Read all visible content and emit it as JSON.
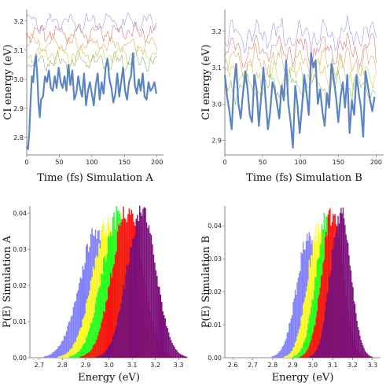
{
  "chart_data": [
    {
      "type": "line",
      "xlabel": "Time (fs) Simulation A",
      "ylabel": "CI energy (eV)",
      "xlim": [
        0,
        210
      ],
      "ylim": [
        2.74,
        3.24
      ],
      "xticks": [
        0,
        50,
        100,
        150,
        200
      ],
      "yticks": [
        2.8,
        2.9,
        3.0,
        3.1,
        3.2
      ],
      "yticklabels": [
        "2.8",
        "2.9",
        "3.0",
        "3.1",
        "3.2"
      ],
      "grid": false,
      "series": [
        {
          "color": "#9999ee",
          "width": 0.6,
          "base": 3.195,
          "amp": 0.032,
          "seed": 1.3
        },
        {
          "color": "#dd7777",
          "width": 0.6,
          "base": 3.16,
          "amp": 0.03,
          "seed": 2.1
        },
        {
          "color": "#ddaa66",
          "width": 0.6,
          "base": 3.12,
          "amp": 0.03,
          "seed": 3.7
        },
        {
          "color": "#cccc55",
          "width": 0.6,
          "base": 3.085,
          "amp": 0.03,
          "seed": 4.4
        },
        {
          "color": "#88bb66",
          "width": 0.6,
          "base": 3.06,
          "amp": 0.03,
          "seed": 5.9
        },
        {
          "color": "#5b84c4",
          "width": 2.2,
          "x": [
            0,
            2,
            4,
            6,
            8,
            10,
            12,
            14,
            16,
            18,
            20,
            22,
            25,
            28,
            31,
            34,
            37,
            40,
            43,
            46,
            49,
            52,
            55,
            58,
            61,
            64,
            67,
            70,
            73,
            76,
            79,
            82,
            85,
            88,
            91,
            94,
            97,
            100,
            103,
            106,
            109,
            112,
            115,
            118,
            121,
            124,
            127,
            130,
            133,
            136,
            139,
            142,
            145,
            148,
            151,
            154,
            157,
            160,
            163,
            166,
            169,
            172,
            175,
            178,
            181,
            184,
            187,
            190,
            193,
            196,
            199
          ],
          "y": [
            2.77,
            2.76,
            2.82,
            2.93,
            3.01,
            2.99,
            3.05,
            3.08,
            3.02,
            2.92,
            2.87,
            2.93,
            2.94,
            3.01,
            2.99,
            3.03,
            2.97,
            2.96,
            3.01,
            2.97,
            3.04,
            2.99,
            2.97,
            3.01,
            2.96,
            3.05,
            2.98,
            3.03,
            2.93,
            2.95,
            3.01,
            2.97,
            2.94,
            3.02,
            2.91,
            2.96,
            2.99,
            2.95,
            2.91,
            2.98,
            3.02,
            2.93,
            2.99,
            2.95,
            3.04,
            3.07,
            3.0,
            2.97,
            2.92,
            2.95,
            3.02,
            2.94,
            2.99,
            3.04,
            2.96,
            2.93,
            2.99,
            3.01,
            3.09,
            2.98,
            2.95,
            3.0,
            2.96,
            3.02,
            2.94,
            2.93,
            2.99,
            2.96,
            2.97,
            2.99,
            2.95
          ]
        }
      ]
    },
    {
      "type": "line",
      "xlabel": "Time (fs) Simulation B",
      "ylabel": "CI energy (eV)",
      "xlim": [
        0,
        210
      ],
      "ylim": [
        2.86,
        3.26
      ],
      "xticks": [
        0,
        50,
        100,
        150,
        200
      ],
      "yticks": [
        2.9,
        3.0,
        3.1,
        3.2
      ],
      "yticklabels": [
        "2.9",
        "3.0",
        "3.1",
        "3.2"
      ],
      "grid": false,
      "series": [
        {
          "color": "#9999ee",
          "width": 0.6,
          "base": 3.19,
          "amp": 0.04,
          "seed": 6.2
        },
        {
          "color": "#dd7777",
          "width": 0.6,
          "base": 3.15,
          "amp": 0.04,
          "seed": 7.5
        },
        {
          "color": "#ddaa66",
          "width": 0.6,
          "base": 3.115,
          "amp": 0.04,
          "seed": 8.8
        },
        {
          "color": "#cccc55",
          "width": 0.6,
          "base": 3.08,
          "amp": 0.04,
          "seed": 9.1
        },
        {
          "color": "#88bb66",
          "width": 0.6,
          "base": 3.05,
          "amp": 0.04,
          "seed": 10.6
        },
        {
          "color": "#5b84c4",
          "width": 2.2,
          "x": [
            0,
            3,
            6,
            9,
            12,
            15,
            18,
            21,
            24,
            27,
            30,
            33,
            36,
            39,
            42,
            45,
            48,
            51,
            54,
            57,
            60,
            63,
            66,
            69,
            72,
            75,
            78,
            81,
            84,
            87,
            90,
            93,
            96,
            99,
            102,
            105,
            108,
            111,
            114,
            117,
            120,
            123,
            126,
            129,
            132,
            135,
            138,
            141,
            144,
            147,
            150,
            153,
            156,
            159,
            162,
            165,
            168,
            171,
            174,
            177,
            180,
            183,
            186,
            189,
            192,
            195,
            198
          ],
          "y": [
            3.08,
            3.02,
            2.98,
            2.93,
            3.05,
            3.11,
            3.0,
            2.96,
            3.03,
            3.09,
            3.04,
            2.97,
            2.95,
            3.08,
            3.04,
            2.94,
            3.02,
            3.1,
            3.01,
            2.93,
            2.98,
            3.06,
            3.04,
            3.0,
            2.96,
            3.05,
            3.01,
            3.12,
            3.0,
            2.95,
            2.88,
            3.05,
            3.0,
            2.92,
            2.99,
            3.08,
            3.03,
            2.97,
            3.14,
            3.1,
            3.12,
            3.0,
            3.04,
            2.98,
            2.94,
            3.03,
            2.99,
            3.11,
            3.07,
            3.02,
            2.95,
            3.02,
            3.06,
            2.99,
            3.08,
            2.92,
            3.01,
            2.97,
            3.08,
            3.03,
            2.99,
            2.91,
            3.09,
            3.05,
            3.01,
            2.98,
            3.02
          ]
        }
      ]
    },
    {
      "type": "histogram",
      "xlabel": "Energy (eV)",
      "ylabel": "P(E) Simulation A",
      "xlim": [
        2.66,
        3.34
      ],
      "ylim": [
        0,
        0.042
      ],
      "xticks": [
        2.7,
        2.8,
        2.9,
        3.0,
        3.1,
        3.2,
        3.3
      ],
      "xticklabels": [
        "2.7",
        "2.8",
        "2.9",
        "3.0",
        "3.1",
        "3.2",
        "3.3"
      ],
      "yticks": [
        0,
        0.01,
        0.02,
        0.03,
        0.04
      ],
      "yticklabels": [
        "0.00",
        "0.01",
        "0.02",
        "0.03",
        "0.04"
      ],
      "binwidth": 0.005,
      "grid": false,
      "series": [
        {
          "color": "#8080ff",
          "center": 2.95,
          "sigma": 0.075,
          "peak": 0.035
        },
        {
          "color": "#ffff22",
          "center": 3.0,
          "sigma": 0.07,
          "peak": 0.037
        },
        {
          "color": "#22ff22",
          "center": 3.04,
          "sigma": 0.068,
          "peak": 0.039
        },
        {
          "color": "#ff1111",
          "center": 3.08,
          "sigma": 0.065,
          "peak": 0.041
        },
        {
          "color": "#7a0f7a",
          "center": 3.14,
          "sigma": 0.062,
          "peak": 0.041
        }
      ]
    },
    {
      "type": "histogram",
      "xlabel": "Energy (eV)",
      "ylabel": "P(E) Simulation B",
      "xlim": [
        2.56,
        3.34
      ],
      "ylim": [
        0,
        0.046
      ],
      "xticks": [
        2.6,
        2.7,
        2.8,
        2.9,
        3.0,
        3.1,
        3.2,
        3.3
      ],
      "xticklabels": [
        "2.6",
        "2.7",
        "2.8",
        "2.9",
        "3.0",
        "3.1",
        "3.2",
        "3.3"
      ],
      "yticks": [
        0,
        0.01,
        0.02,
        0.03,
        0.04
      ],
      "yticklabels": [
        "0.00",
        "0.01",
        "0.02",
        "0.03",
        "0.04"
      ],
      "binwidth": 0.005,
      "grid": false,
      "series": [
        {
          "color": "#8080ff",
          "center": 2.98,
          "sigma": 0.06,
          "peak": 0.036
        },
        {
          "color": "#ffff22",
          "center": 3.03,
          "sigma": 0.056,
          "peak": 0.039
        },
        {
          "color": "#22ff22",
          "center": 3.07,
          "sigma": 0.054,
          "peak": 0.042
        },
        {
          "color": "#ff1111",
          "center": 3.1,
          "sigma": 0.052,
          "peak": 0.044
        },
        {
          "color": "#7a0f7a",
          "center": 3.14,
          "sigma": 0.05,
          "peak": 0.045
        }
      ]
    }
  ]
}
